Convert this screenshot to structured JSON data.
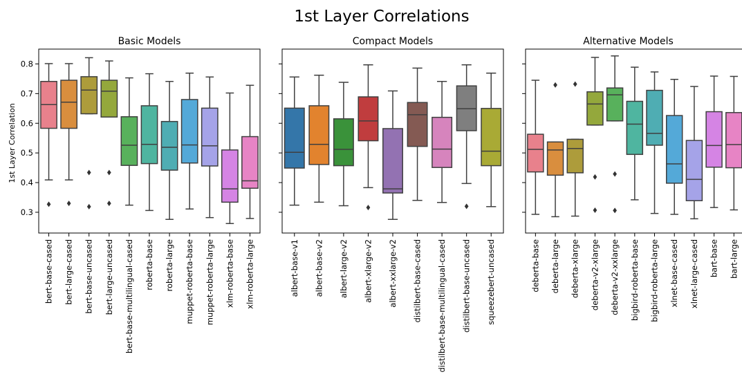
{
  "title": "1st Layer Correlations",
  "ylabel": "1st Layer Correlation",
  "chart_data": [
    {
      "type": "box",
      "title": "Basic Models",
      "ylim": [
        0.23,
        0.85
      ],
      "yticks": [
        0.3,
        0.4,
        0.5,
        0.6,
        0.7,
        0.8
      ],
      "categories": [
        "bert-base-cased",
        "bert-large-cased",
        "bert-base-uncased",
        "bert-large-uncased",
        "bert-base-multilingual-cased",
        "roberta-base",
        "roberta-large",
        "muppet-roberta-base",
        "muppet-roberta-large",
        "xlm-roberta-base",
        "xlm-roberta-large"
      ],
      "boxes": [
        {
          "color": "#e8818c",
          "q1": 0.583,
          "median": 0.663,
          "q3": 0.741,
          "low": 0.409,
          "high": 0.801,
          "outliers": [
            0.327
          ]
        },
        {
          "color": "#d98e3e",
          "q1": 0.583,
          "median": 0.671,
          "q3": 0.745,
          "low": 0.409,
          "high": 0.801,
          "outliers": [
            0.33
          ]
        },
        {
          "color": "#ad9c3b",
          "q1": 0.632,
          "median": 0.712,
          "q3": 0.757,
          "low": 0.632,
          "high": 0.821,
          "outliers": [
            0.434,
            0.319
          ]
        },
        {
          "color": "#94a83c",
          "q1": 0.621,
          "median": 0.708,
          "q3": 0.745,
          "low": 0.621,
          "high": 0.81,
          "outliers": [
            0.434,
            0.33
          ]
        },
        {
          "color": "#58b15c",
          "q1": 0.458,
          "median": 0.526,
          "q3": 0.622,
          "low": 0.324,
          "high": 0.753,
          "outliers": []
        },
        {
          "color": "#4fb5a0",
          "q1": 0.464,
          "median": 0.529,
          "q3": 0.659,
          "low": 0.306,
          "high": 0.767,
          "outliers": []
        },
        {
          "color": "#4fadb3",
          "q1": 0.442,
          "median": 0.519,
          "q3": 0.606,
          "low": 0.276,
          "high": 0.741,
          "outliers": []
        },
        {
          "color": "#54a9d8",
          "q1": 0.466,
          "median": 0.527,
          "q3": 0.68,
          "low": 0.311,
          "high": 0.769,
          "outliers": []
        },
        {
          "color": "#a5a3e8",
          "q1": 0.456,
          "median": 0.524,
          "q3": 0.651,
          "low": 0.282,
          "high": 0.756,
          "outliers": []
        },
        {
          "color": "#d584e4",
          "q1": 0.334,
          "median": 0.379,
          "q3": 0.51,
          "low": 0.262,
          "high": 0.702,
          "outliers": []
        },
        {
          "color": "#e784c5",
          "q1": 0.381,
          "median": 0.406,
          "q3": 0.555,
          "low": 0.279,
          "high": 0.728,
          "outliers": []
        }
      ]
    },
    {
      "type": "box",
      "title": "Compact Models",
      "ylim": [
        0.23,
        0.85
      ],
      "yticks": [
        0.3,
        0.4,
        0.5,
        0.6,
        0.7,
        0.8
      ],
      "categories": [
        "albert-base-v1",
        "albert-base-v2",
        "albert-large-v2",
        "albert-xlarge-v2",
        "albert-xxlarge-v2",
        "distilbert-base-cased",
        "distilbert-base-multilingual-cased",
        "distilbert-base-uncased",
        "squeezebert-uncased"
      ],
      "boxes": [
        {
          "color": "#3476a9",
          "q1": 0.449,
          "median": 0.502,
          "q3": 0.651,
          "low": 0.324,
          "high": 0.756,
          "outliers": []
        },
        {
          "color": "#e2832e",
          "q1": 0.461,
          "median": 0.529,
          "q3": 0.659,
          "low": 0.334,
          "high": 0.762,
          "outliers": []
        },
        {
          "color": "#3a923a",
          "q1": 0.457,
          "median": 0.512,
          "q3": 0.615,
          "low": 0.322,
          "high": 0.738,
          "outliers": []
        },
        {
          "color": "#c03d3e",
          "q1": 0.541,
          "median": 0.608,
          "q3": 0.689,
          "low": 0.383,
          "high": 0.797,
          "outliers": [
            0.316
          ]
        },
        {
          "color": "#9372b2",
          "q1": 0.365,
          "median": 0.379,
          "q3": 0.582,
          "low": 0.276,
          "high": 0.709,
          "outliers": []
        },
        {
          "color": "#845a53",
          "q1": 0.522,
          "median": 0.629,
          "q3": 0.67,
          "low": 0.34,
          "high": 0.786,
          "outliers": []
        },
        {
          "color": "#d684bd",
          "q1": 0.451,
          "median": 0.513,
          "q3": 0.62,
          "low": 0.333,
          "high": 0.741,
          "outliers": []
        },
        {
          "color": "#7f7f7f",
          "q1": 0.575,
          "median": 0.649,
          "q3": 0.726,
          "low": 0.397,
          "high": 0.797,
          "outliers": [
            0.32
          ]
        },
        {
          "color": "#a9aa35",
          "q1": 0.457,
          "median": 0.506,
          "q3": 0.65,
          "low": 0.319,
          "high": 0.769,
          "outliers": []
        }
      ]
    },
    {
      "type": "box",
      "title": "Alternative Models",
      "ylim": [
        0.23,
        0.85
      ],
      "yticks": [
        0.3,
        0.4,
        0.5,
        0.6,
        0.7,
        0.8
      ],
      "categories": [
        "deberta-base",
        "deberta-large",
        "deberta-xlarge",
        "deberta-v2-xlarge",
        "deberta-v2-xxlarge",
        "bigbird-roberta-base",
        "bigbird-roberta-large",
        "xlnet-base-cased",
        "xlnet-large-cased",
        "bart-base",
        "bart-large"
      ],
      "boxes": [
        {
          "color": "#e8818c",
          "q1": 0.436,
          "median": 0.512,
          "q3": 0.563,
          "low": 0.293,
          "high": 0.745,
          "outliers": []
        },
        {
          "color": "#d98e3e",
          "q1": 0.425,
          "median": 0.51,
          "q3": 0.537,
          "low": 0.285,
          "high": 0.537,
          "outliers": [
            0.729
          ]
        },
        {
          "color": "#ad9c3b",
          "q1": 0.433,
          "median": 0.515,
          "q3": 0.546,
          "low": 0.287,
          "high": 0.546,
          "outliers": [
            0.732
          ]
        },
        {
          "color": "#94a83c",
          "q1": 0.594,
          "median": 0.665,
          "q3": 0.706,
          "low": 0.594,
          "high": 0.822,
          "outliers": [
            0.419,
            0.307
          ]
        },
        {
          "color": "#58b15c",
          "q1": 0.608,
          "median": 0.696,
          "q3": 0.719,
          "low": 0.608,
          "high": 0.827,
          "outliers": [
            0.429,
            0.306
          ]
        },
        {
          "color": "#4fb5a0",
          "q1": 0.495,
          "median": 0.597,
          "q3": 0.674,
          "low": 0.342,
          "high": 0.789,
          "outliers": []
        },
        {
          "color": "#4fadb3",
          "q1": 0.526,
          "median": 0.566,
          "q3": 0.711,
          "low": 0.296,
          "high": 0.773,
          "outliers": []
        },
        {
          "color": "#54a9d8",
          "q1": 0.398,
          "median": 0.463,
          "q3": 0.626,
          "low": 0.293,
          "high": 0.748,
          "outliers": []
        },
        {
          "color": "#a5a3e8",
          "q1": 0.339,
          "median": 0.411,
          "q3": 0.542,
          "low": 0.278,
          "high": 0.724,
          "outliers": []
        },
        {
          "color": "#d584e4",
          "q1": 0.452,
          "median": 0.525,
          "q3": 0.639,
          "low": 0.316,
          "high": 0.759,
          "outliers": []
        },
        {
          "color": "#e784c5",
          "q1": 0.45,
          "median": 0.528,
          "q3": 0.636,
          "low": 0.308,
          "high": 0.758,
          "outliers": []
        }
      ]
    }
  ]
}
